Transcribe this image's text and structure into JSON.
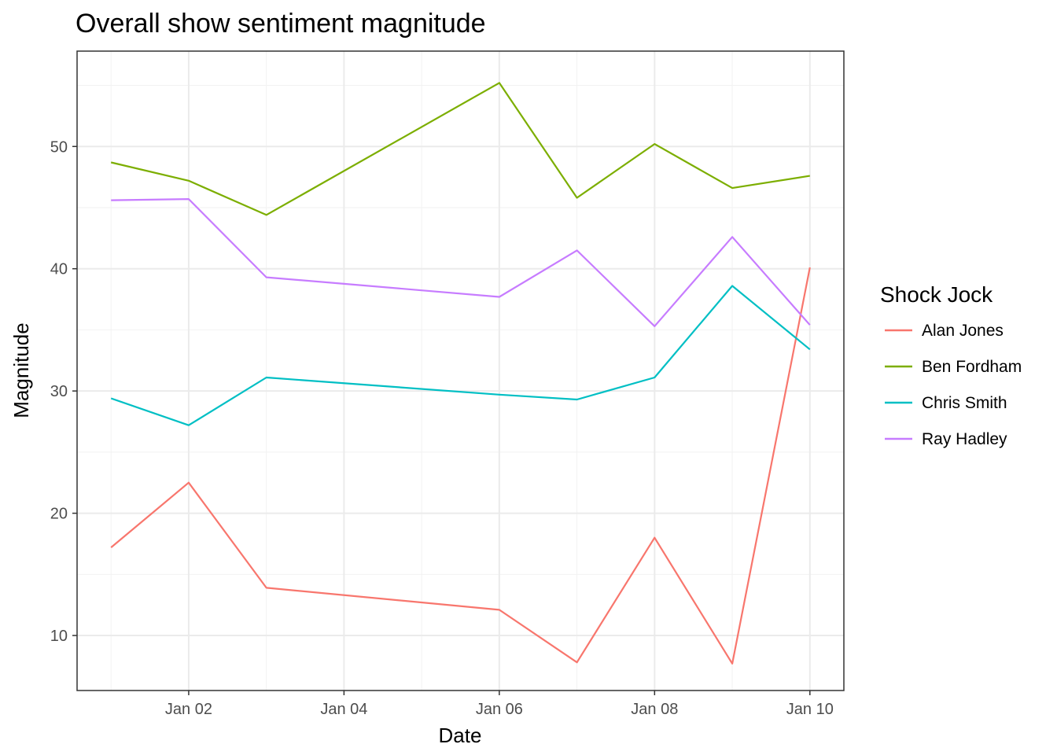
{
  "chart_data": {
    "type": "line",
    "title": "Overall show sentiment magnitude",
    "xlabel": "Date",
    "ylabel": "Magnitude",
    "x": [
      "2018-01-01",
      "2018-01-02",
      "2018-01-03",
      "2018-01-06",
      "2018-01-07",
      "2018-01-08",
      "2018-01-09",
      "2018-01-10"
    ],
    "x_ticks": [
      {
        "date": "2018-01-02",
        "label": "Jan 02"
      },
      {
        "date": "2018-01-04",
        "label": "Jan 04"
      },
      {
        "date": "2018-01-06",
        "label": "Jan 06"
      },
      {
        "date": "2018-01-08",
        "label": "Jan 08"
      },
      {
        "date": "2018-01-10",
        "label": "Jan 10"
      }
    ],
    "xlim": [
      "2017-12-31T13:30",
      "2018-01-10T10:30"
    ],
    "y_ticks": [
      10,
      20,
      30,
      40,
      50
    ],
    "ylim": [
      5.5,
      57.8
    ],
    "grid": true,
    "legend": {
      "title": "Shock Jock",
      "position": "right"
    },
    "series": [
      {
        "name": "Alan Jones",
        "color": "#F8766D",
        "values": [
          17.2,
          22.5,
          13.9,
          12.1,
          7.8,
          18.0,
          7.7,
          40.1
        ]
      },
      {
        "name": "Ben Fordham",
        "color": "#7CAE00",
        "values": [
          48.7,
          47.2,
          44.4,
          55.2,
          45.8,
          50.2,
          46.6,
          47.6
        ]
      },
      {
        "name": "Chris Smith",
        "color": "#00BFC4",
        "values": [
          29.4,
          27.2,
          31.1,
          29.7,
          29.3,
          31.1,
          38.6,
          33.4
        ]
      },
      {
        "name": "Ray Hadley",
        "color": "#C77CFF",
        "values": [
          45.6,
          45.7,
          39.3,
          37.7,
          41.5,
          35.3,
          42.6,
          35.4
        ]
      }
    ]
  }
}
